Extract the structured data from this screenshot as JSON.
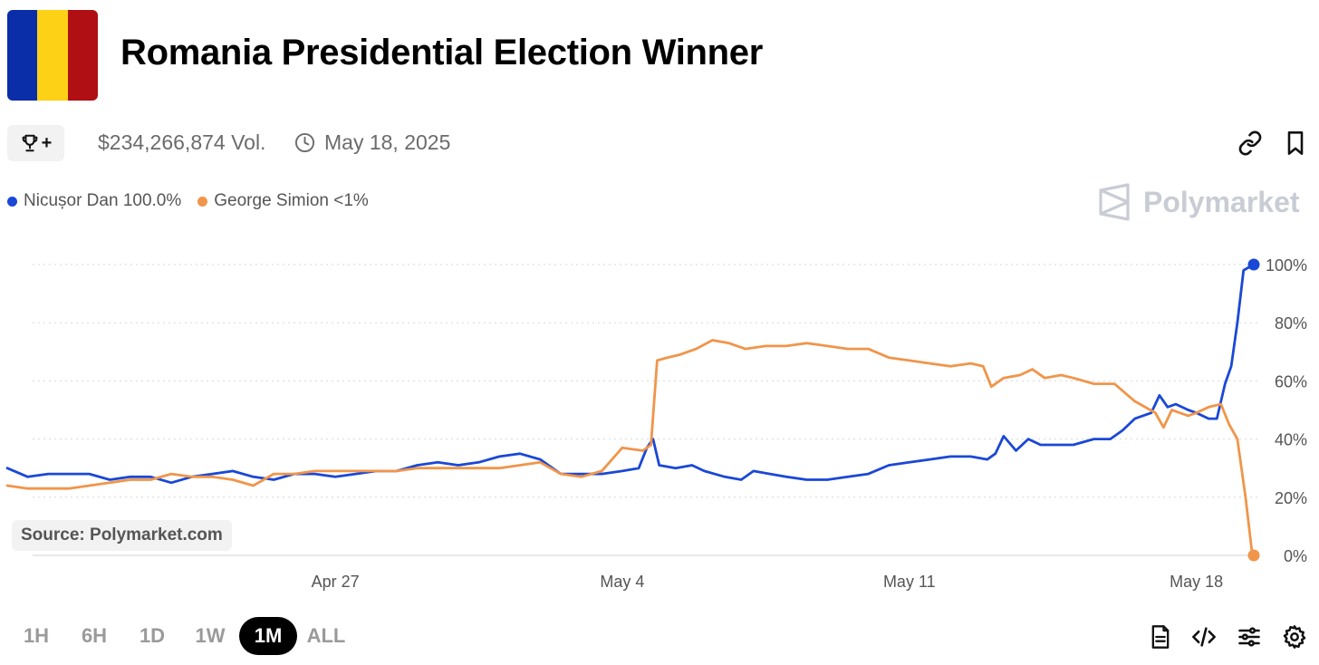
{
  "header": {
    "title": "Romania Presidential Election Winner",
    "flag_colors": [
      "#0a2ea8",
      "#fcd116",
      "#b00f14"
    ],
    "volume": "$234,266,874 Vol.",
    "date": "May 18, 2025",
    "icons": [
      "trophy-icon",
      "clock-icon",
      "link-icon",
      "bookmark-icon"
    ]
  },
  "legend": [
    {
      "label": "Nicușor Dan 100.0%",
      "color": "#1a48d6"
    },
    {
      "label": "George Simion <1%",
      "color": "#f0954a"
    }
  ],
  "watermark": "Polymarket",
  "source": "Source: Polymarket.com",
  "ranges": [
    "1H",
    "6H",
    "1D",
    "1W",
    "1M",
    "ALL"
  ],
  "active_range": "1M",
  "toolbar_icons": [
    "document-icon",
    "code-icon",
    "sliders-icon",
    "gear-icon"
  ],
  "chart_data": {
    "type": "line",
    "x_start": "Apr 19",
    "x_end": "May 19",
    "xticks": [
      {
        "label": "Apr 27",
        "day": 8
      },
      {
        "label": "May 4",
        "day": 15
      },
      {
        "label": "May 11",
        "day": 22
      },
      {
        "label": "May 18",
        "day": 29
      }
    ],
    "yticks": [
      "0%",
      "20%",
      "40%",
      "60%",
      "80%",
      "100%"
    ],
    "ylim": [
      0,
      100
    ],
    "grid": true,
    "series": [
      {
        "name": "Nicușor Dan",
        "color": "#1a48d6",
        "points": [
          [
            0.0,
            30
          ],
          [
            0.5,
            27
          ],
          [
            1.0,
            28
          ],
          [
            1.5,
            28
          ],
          [
            2.0,
            28
          ],
          [
            2.5,
            26
          ],
          [
            3.0,
            27
          ],
          [
            3.5,
            27
          ],
          [
            4.0,
            25
          ],
          [
            4.5,
            27
          ],
          [
            5.0,
            28
          ],
          [
            5.5,
            29
          ],
          [
            6.0,
            27
          ],
          [
            6.5,
            26
          ],
          [
            7.0,
            28
          ],
          [
            7.5,
            28
          ],
          [
            8.0,
            27
          ],
          [
            8.5,
            28
          ],
          [
            9.0,
            29
          ],
          [
            9.5,
            29
          ],
          [
            10.0,
            31
          ],
          [
            10.5,
            32
          ],
          [
            11.0,
            31
          ],
          [
            11.5,
            32
          ],
          [
            12.0,
            34
          ],
          [
            12.5,
            35
          ],
          [
            13.0,
            33
          ],
          [
            13.5,
            28
          ],
          [
            14.0,
            28
          ],
          [
            14.5,
            28
          ],
          [
            15.0,
            29
          ],
          [
            15.4,
            30
          ],
          [
            15.6,
            37
          ],
          [
            15.75,
            40
          ],
          [
            15.9,
            31
          ],
          [
            16.3,
            30
          ],
          [
            16.7,
            31
          ],
          [
            17.0,
            29
          ],
          [
            17.5,
            27
          ],
          [
            17.9,
            26
          ],
          [
            18.2,
            29
          ],
          [
            18.6,
            28
          ],
          [
            19.0,
            27
          ],
          [
            19.5,
            26
          ],
          [
            20.0,
            26
          ],
          [
            20.5,
            27
          ],
          [
            21.0,
            28
          ],
          [
            21.5,
            31
          ],
          [
            22.0,
            32
          ],
          [
            22.5,
            33
          ],
          [
            23.0,
            34
          ],
          [
            23.5,
            34
          ],
          [
            23.9,
            33
          ],
          [
            24.1,
            35
          ],
          [
            24.3,
            41
          ],
          [
            24.6,
            36
          ],
          [
            24.9,
            40
          ],
          [
            25.2,
            38
          ],
          [
            25.6,
            38
          ],
          [
            26.0,
            38
          ],
          [
            26.5,
            40
          ],
          [
            26.9,
            40
          ],
          [
            27.2,
            43
          ],
          [
            27.5,
            47
          ],
          [
            27.9,
            49
          ],
          [
            28.1,
            55
          ],
          [
            28.3,
            51
          ],
          [
            28.5,
            52
          ],
          [
            28.8,
            50
          ],
          [
            29.0,
            49
          ],
          [
            29.3,
            47
          ],
          [
            29.5,
            47
          ],
          [
            29.7,
            59
          ],
          [
            29.85,
            65
          ],
          [
            30.0,
            80
          ],
          [
            30.15,
            98
          ],
          [
            30.4,
            100
          ]
        ]
      },
      {
        "name": "George Simion",
        "color": "#f0954a",
        "points": [
          [
            0.0,
            24
          ],
          [
            0.5,
            23
          ],
          [
            1.0,
            23
          ],
          [
            1.5,
            23
          ],
          [
            2.0,
            24
          ],
          [
            2.5,
            25
          ],
          [
            3.0,
            26
          ],
          [
            3.5,
            26
          ],
          [
            4.0,
            28
          ],
          [
            4.5,
            27
          ],
          [
            5.0,
            27
          ],
          [
            5.5,
            26
          ],
          [
            6.0,
            24
          ],
          [
            6.5,
            28
          ],
          [
            7.0,
            28
          ],
          [
            7.5,
            29
          ],
          [
            8.0,
            29
          ],
          [
            8.5,
            29
          ],
          [
            9.0,
            29
          ],
          [
            9.5,
            29
          ],
          [
            10.0,
            30
          ],
          [
            10.5,
            30
          ],
          [
            11.0,
            30
          ],
          [
            11.5,
            30
          ],
          [
            12.0,
            30
          ],
          [
            12.5,
            31
          ],
          [
            13.0,
            32
          ],
          [
            13.5,
            28
          ],
          [
            14.0,
            27
          ],
          [
            14.5,
            29
          ],
          [
            15.0,
            37
          ],
          [
            15.5,
            36
          ],
          [
            15.7,
            38
          ],
          [
            15.85,
            67
          ],
          [
            16.1,
            68
          ],
          [
            16.4,
            69
          ],
          [
            16.8,
            71
          ],
          [
            17.2,
            74
          ],
          [
            17.6,
            73
          ],
          [
            18.0,
            71
          ],
          [
            18.5,
            72
          ],
          [
            19.0,
            72
          ],
          [
            19.5,
            73
          ],
          [
            20.0,
            72
          ],
          [
            20.5,
            71
          ],
          [
            21.0,
            71
          ],
          [
            21.5,
            68
          ],
          [
            22.0,
            67
          ],
          [
            22.5,
            66
          ],
          [
            23.0,
            65
          ],
          [
            23.5,
            66
          ],
          [
            23.8,
            65
          ],
          [
            24.0,
            58
          ],
          [
            24.3,
            61
          ],
          [
            24.7,
            62
          ],
          [
            25.0,
            64
          ],
          [
            25.3,
            61
          ],
          [
            25.7,
            62
          ],
          [
            26.0,
            61
          ],
          [
            26.5,
            59
          ],
          [
            27.0,
            59
          ],
          [
            27.5,
            53
          ],
          [
            28.0,
            49
          ],
          [
            28.2,
            44
          ],
          [
            28.4,
            50
          ],
          [
            28.6,
            49
          ],
          [
            28.8,
            48
          ],
          [
            29.0,
            49
          ],
          [
            29.3,
            51
          ],
          [
            29.6,
            52
          ],
          [
            29.8,
            45
          ],
          [
            30.0,
            40
          ],
          [
            30.2,
            20
          ],
          [
            30.35,
            2
          ],
          [
            30.4,
            0
          ]
        ]
      }
    ]
  }
}
